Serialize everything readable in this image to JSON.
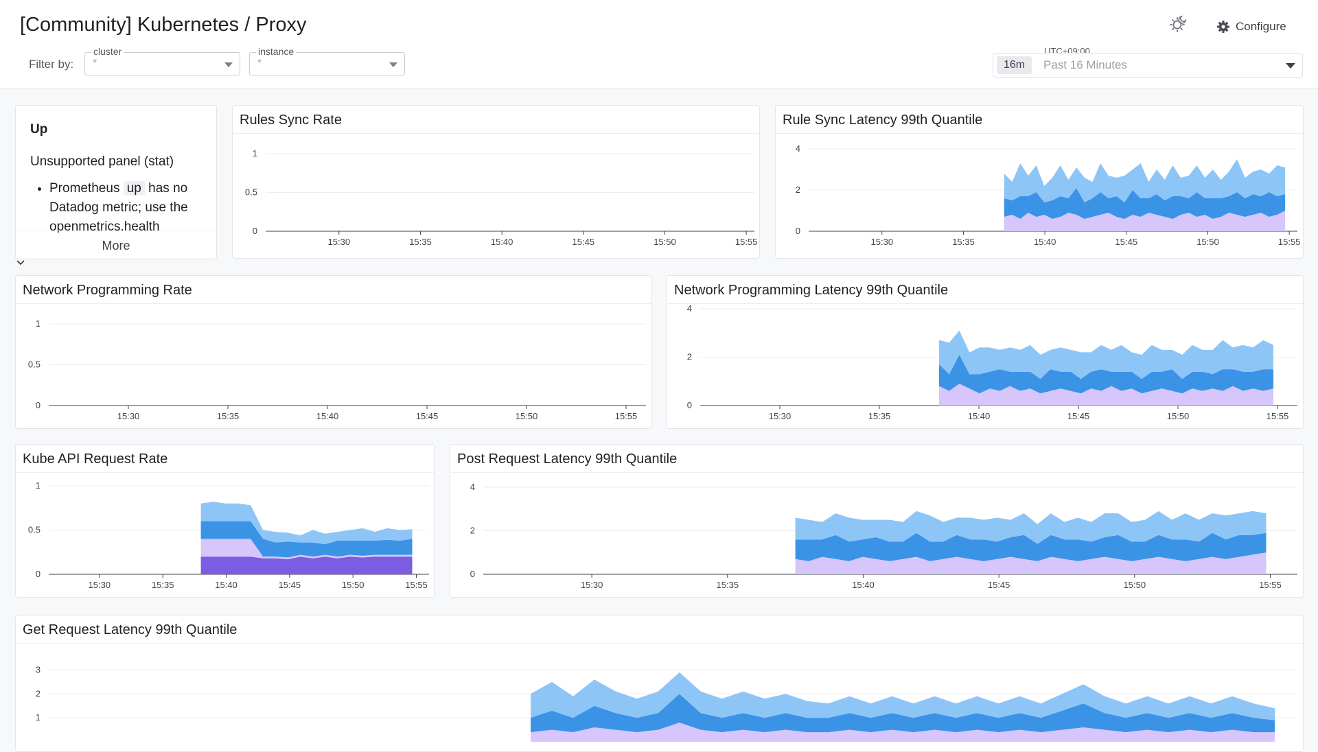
{
  "header": {
    "title": "[Community] Kubernetes / Proxy",
    "filter_label": "Filter by:",
    "filters": [
      {
        "label": "cluster",
        "value": "*"
      },
      {
        "label": "instance",
        "value": "*"
      }
    ],
    "theme_icon": "sun-moon-icon",
    "configure_label": "Configure",
    "configure_icon": "gear-icon",
    "timezone": "UTC+09:00",
    "time_badge": "16m",
    "time_range": "Past 16 Minutes"
  },
  "colors": {
    "light_blue": "#8ec5f7",
    "mid_blue": "#3b93e6",
    "lavender": "#d6c6fb",
    "purple": "#7d5ce4",
    "text": "#1f2024"
  },
  "panels": {
    "up": {
      "title": "Up",
      "subtitle": "Unsupported panel (stat)",
      "body_pre": "Prometheus",
      "body_code": "up",
      "body_post": "has no Datadog metric; use the openmetrics.health",
      "more_label": "More"
    },
    "rules_sync_rate": {
      "title": "Rules Sync Rate"
    },
    "rule_sync_latency": {
      "title": "Rule Sync Latency 99th Quantile"
    },
    "network_programming_rate": {
      "title": "Network Programming Rate"
    },
    "network_programming_latency": {
      "title": "Network Programming Latency 99th Quantile"
    },
    "kube_api_request_rate": {
      "title": "Kube API Request Rate"
    },
    "post_request_latency": {
      "title": "Post Request Latency 99th Quantile"
    },
    "get_request_latency": {
      "title": "Get Request Latency 99th Quantile"
    }
  },
  "chart_data": [
    {
      "type": "line",
      "id": "rules_sync_rate",
      "title": "Rules Sync Rate",
      "x_ticks": [
        "15:30",
        "15:35",
        "15:40",
        "15:45",
        "15:50",
        "15:55"
      ],
      "y_ticks": [
        "0",
        "0.5",
        "1"
      ],
      "ylim": [
        0,
        1
      ],
      "series": []
    },
    {
      "type": "area",
      "id": "rule_sync_latency",
      "title": "Rule Sync Latency 99th Quantile",
      "x_ticks": [
        "15:30",
        "15:35",
        "15:40",
        "15:45",
        "15:50",
        "15:55"
      ],
      "y_ticks": [
        "0",
        "2",
        "4"
      ],
      "ylim": [
        0,
        4
      ],
      "stacked": true,
      "x_start": "15:37:30",
      "x_end": "15:55",
      "series": [
        {
          "color": "#d6c6fb",
          "values": [
            0.7,
            0.8,
            0.6,
            0.9,
            0.7,
            0.8,
            0.6,
            0.7,
            0.9,
            0.8,
            0.6,
            0.7,
            0.8,
            0.9,
            0.7,
            0.6,
            0.8,
            0.7,
            0.9,
            0.8,
            0.7,
            0.6,
            0.8,
            0.9,
            0.7,
            0.8,
            0.6,
            0.7,
            0.9,
            0.8,
            0.7,
            0.8,
            0.9,
            0.7,
            0.8,
            1.0
          ]
        },
        {
          "color": "#3b93e6",
          "values": [
            0.9,
            0.7,
            1.1,
            0.8,
            1.2,
            0.6,
            0.9,
            1.0,
            0.7,
            1.3,
            0.8,
            0.9,
            1.1,
            0.7,
            1.0,
            0.8,
            1.2,
            0.9,
            0.7,
            1.0,
            0.8,
            1.1,
            0.9,
            0.7,
            1.2,
            0.8,
            1.0,
            0.9,
            0.8,
            1.1,
            0.9,
            1.0,
            0.8,
            1.2,
            0.9,
            0.8
          ]
        },
        {
          "color": "#8ec5f7",
          "values": [
            1.2,
            0.9,
            1.6,
            1.0,
            1.3,
            0.8,
            1.1,
            1.5,
            0.9,
            1.0,
            1.2,
            0.8,
            1.4,
            1.1,
            0.9,
            1.3,
            1.0,
            1.7,
            0.8,
            1.2,
            1.0,
            1.5,
            0.9,
            1.1,
            1.3,
            1.0,
            1.4,
            0.9,
            1.2,
            1.6,
            1.0,
            1.1,
            1.3,
            0.9,
            1.5,
            1.3
          ]
        }
      ]
    },
    {
      "type": "line",
      "id": "network_programming_rate",
      "title": "Network Programming Rate",
      "x_ticks": [
        "15:30",
        "15:35",
        "15:40",
        "15:45",
        "15:50",
        "15:55"
      ],
      "y_ticks": [
        "0",
        "0.5",
        "1"
      ],
      "ylim": [
        0,
        1
      ],
      "series": []
    },
    {
      "type": "area",
      "id": "network_programming_latency",
      "title": "Network Programming Latency 99th Quantile",
      "x_ticks": [
        "15:30",
        "15:35",
        "15:40",
        "15:45",
        "15:50",
        "15:55"
      ],
      "y_ticks": [
        "0",
        "2",
        "4"
      ],
      "ylim": [
        0,
        4
      ],
      "stacked": true,
      "x_start": "15:38",
      "x_end": "15:55",
      "series": [
        {
          "color": "#d6c6fb",
          "values": [
            0.8,
            0.6,
            0.9,
            0.7,
            0.5,
            0.7,
            0.6,
            0.8,
            0.6,
            0.7,
            0.5,
            0.6,
            0.7,
            0.6,
            0.5,
            0.7,
            0.6,
            0.8,
            0.6,
            0.7,
            0.5,
            0.6,
            0.7,
            0.6,
            0.5,
            0.7,
            0.6,
            0.7,
            0.6,
            0.8,
            0.6,
            0.7,
            0.6,
            0.7
          ]
        },
        {
          "color": "#3b93e6",
          "values": [
            0.9,
            0.7,
            1.2,
            0.6,
            0.8,
            0.7,
            0.9,
            0.6,
            0.8,
            0.7,
            0.6,
            0.9,
            0.7,
            0.8,
            0.6,
            0.7,
            0.9,
            0.6,
            0.8,
            0.7,
            0.6,
            0.8,
            0.7,
            0.9,
            0.6,
            0.7,
            0.8,
            0.6,
            0.9,
            0.7,
            0.8,
            0.7,
            0.9,
            0.8
          ]
        },
        {
          "color": "#8ec5f7",
          "values": [
            1.0,
            1.3,
            1.0,
            0.9,
            1.1,
            1.0,
            0.8,
            1.0,
            0.9,
            1.1,
            1.0,
            0.8,
            1.0,
            0.9,
            1.1,
            0.8,
            1.0,
            0.9,
            1.1,
            0.8,
            1.0,
            1.1,
            0.9,
            0.8,
            1.0,
            1.1,
            0.9,
            1.0,
            1.2,
            0.9,
            1.1,
            1.0,
            1.2,
            1.0
          ]
        }
      ]
    },
    {
      "type": "area",
      "id": "kube_api_request_rate",
      "title": "Kube API Request Rate",
      "x_ticks": [
        "15:30",
        "15:35",
        "15:40",
        "15:45",
        "15:50",
        "15:55"
      ],
      "y_ticks": [
        "0",
        "0.5",
        "1"
      ],
      "ylim": [
        0,
        1
      ],
      "stacked": true,
      "x_start": "15:38",
      "x_end": "15:55",
      "series": [
        {
          "color": "#7d5ce4",
          "values": [
            0.2,
            0.2,
            0.2,
            0.2,
            0.2,
            0.18,
            0.18,
            0.17,
            0.2,
            0.18,
            0.2,
            0.18,
            0.2,
            0.19,
            0.2,
            0.2,
            0.2,
            0.2
          ]
        },
        {
          "color": "#d6c6fb",
          "values": [
            0.2,
            0.2,
            0.2,
            0.2,
            0.2,
            0.02,
            0.02,
            0.02,
            0.02,
            0.02,
            0.02,
            0.02,
            0.02,
            0.02,
            0.02,
            0.02,
            0.02,
            0.02
          ]
        },
        {
          "color": "#3b93e6",
          "values": [
            0.2,
            0.2,
            0.2,
            0.2,
            0.2,
            0.2,
            0.16,
            0.18,
            0.14,
            0.16,
            0.12,
            0.18,
            0.16,
            0.17,
            0.16,
            0.17,
            0.16,
            0.18
          ]
        },
        {
          "color": "#8ec5f7",
          "values": [
            0.2,
            0.22,
            0.2,
            0.2,
            0.18,
            0.1,
            0.12,
            0.1,
            0.08,
            0.14,
            0.12,
            0.1,
            0.12,
            0.14,
            0.1,
            0.13,
            0.12,
            0.11
          ]
        }
      ]
    },
    {
      "type": "area",
      "id": "post_request_latency",
      "title": "Post Request Latency 99th Quantile",
      "x_ticks": [
        "15:30",
        "15:35",
        "15:40",
        "15:45",
        "15:50",
        "15:55"
      ],
      "y_ticks": [
        "0",
        "2",
        "4"
      ],
      "ylim": [
        0,
        4
      ],
      "stacked": true,
      "x_start": "15:37:30",
      "x_end": "15:55",
      "series": [
        {
          "color": "#d6c6fb",
          "values": [
            0.7,
            0.6,
            0.8,
            0.7,
            0.6,
            0.8,
            0.7,
            0.6,
            0.7,
            0.8,
            0.6,
            0.7,
            0.8,
            0.7,
            0.6,
            0.7,
            0.8,
            0.7,
            0.6,
            0.8,
            0.7,
            0.6,
            0.7,
            0.8,
            0.7,
            0.6,
            0.7,
            0.8,
            0.7,
            0.6,
            0.7,
            0.8,
            0.7,
            0.8,
            0.9,
            1.0
          ]
        },
        {
          "color": "#3b93e6",
          "values": [
            0.9,
            1.0,
            0.8,
            1.1,
            0.9,
            0.8,
            1.0,
            0.9,
            0.8,
            1.1,
            0.9,
            0.8,
            1.0,
            0.9,
            1.0,
            0.8,
            0.9,
            1.1,
            0.8,
            1.0,
            0.9,
            1.0,
            0.8,
            0.9,
            1.1,
            0.9,
            0.8,
            1.0,
            0.9,
            1.0,
            0.8,
            1.1,
            0.9,
            1.0,
            0.9,
            0.9
          ]
        },
        {
          "color": "#8ec5f7",
          "values": [
            1.0,
            0.9,
            0.8,
            1.0,
            1.1,
            0.9,
            0.8,
            1.0,
            0.9,
            1.0,
            1.2,
            0.9,
            0.8,
            1.0,
            0.9,
            1.1,
            0.8,
            1.0,
            0.9,
            1.0,
            0.8,
            1.0,
            0.9,
            1.1,
            1.0,
            0.9,
            1.0,
            1.1,
            0.9,
            1.2,
            1.0,
            0.9,
            1.1,
            1.0,
            1.1,
            0.9
          ]
        }
      ]
    },
    {
      "type": "area",
      "id": "get_request_latency",
      "title": "Get Request Latency 99th Quantile",
      "x_ticks": [],
      "y_ticks": [
        "1",
        "2",
        "3"
      ],
      "ylim": [
        0,
        3.5
      ],
      "stacked": true,
      "series": [
        {
          "color": "#d6c6fb",
          "values": [
            0.4,
            0.5,
            0.4,
            0.6,
            0.5,
            0.4,
            0.5,
            0.8,
            0.5,
            0.4,
            0.5,
            0.4,
            0.5,
            0.4,
            0.4,
            0.5,
            0.4,
            0.5,
            0.4,
            0.5,
            0.4,
            0.5,
            0.4,
            0.5,
            0.4,
            0.5,
            0.6,
            0.5,
            0.4,
            0.5,
            0.4,
            0.5,
            0.4,
            0.5,
            0.4,
            0.4
          ]
        },
        {
          "color": "#3b93e6",
          "values": [
            0.6,
            0.8,
            0.6,
            0.9,
            0.7,
            0.6,
            0.7,
            1.2,
            0.7,
            0.6,
            0.7,
            0.6,
            0.7,
            0.6,
            0.6,
            0.7,
            0.6,
            0.7,
            0.6,
            0.7,
            0.6,
            0.7,
            0.6,
            0.7,
            0.6,
            0.8,
            1.0,
            0.7,
            0.6,
            0.7,
            0.6,
            0.7,
            0.6,
            0.7,
            0.6,
            0.5
          ]
        },
        {
          "color": "#8ec5f7",
          "values": [
            1.0,
            1.2,
            0.9,
            1.1,
            0.9,
            0.8,
            0.9,
            0.9,
            0.9,
            0.8,
            0.9,
            0.8,
            0.8,
            0.7,
            0.6,
            0.7,
            0.6,
            0.7,
            0.6,
            0.7,
            0.6,
            0.7,
            0.6,
            0.7,
            0.6,
            0.7,
            0.8,
            0.7,
            0.6,
            0.7,
            0.6,
            0.7,
            0.6,
            0.7,
            0.6,
            0.5
          ]
        }
      ]
    }
  ]
}
